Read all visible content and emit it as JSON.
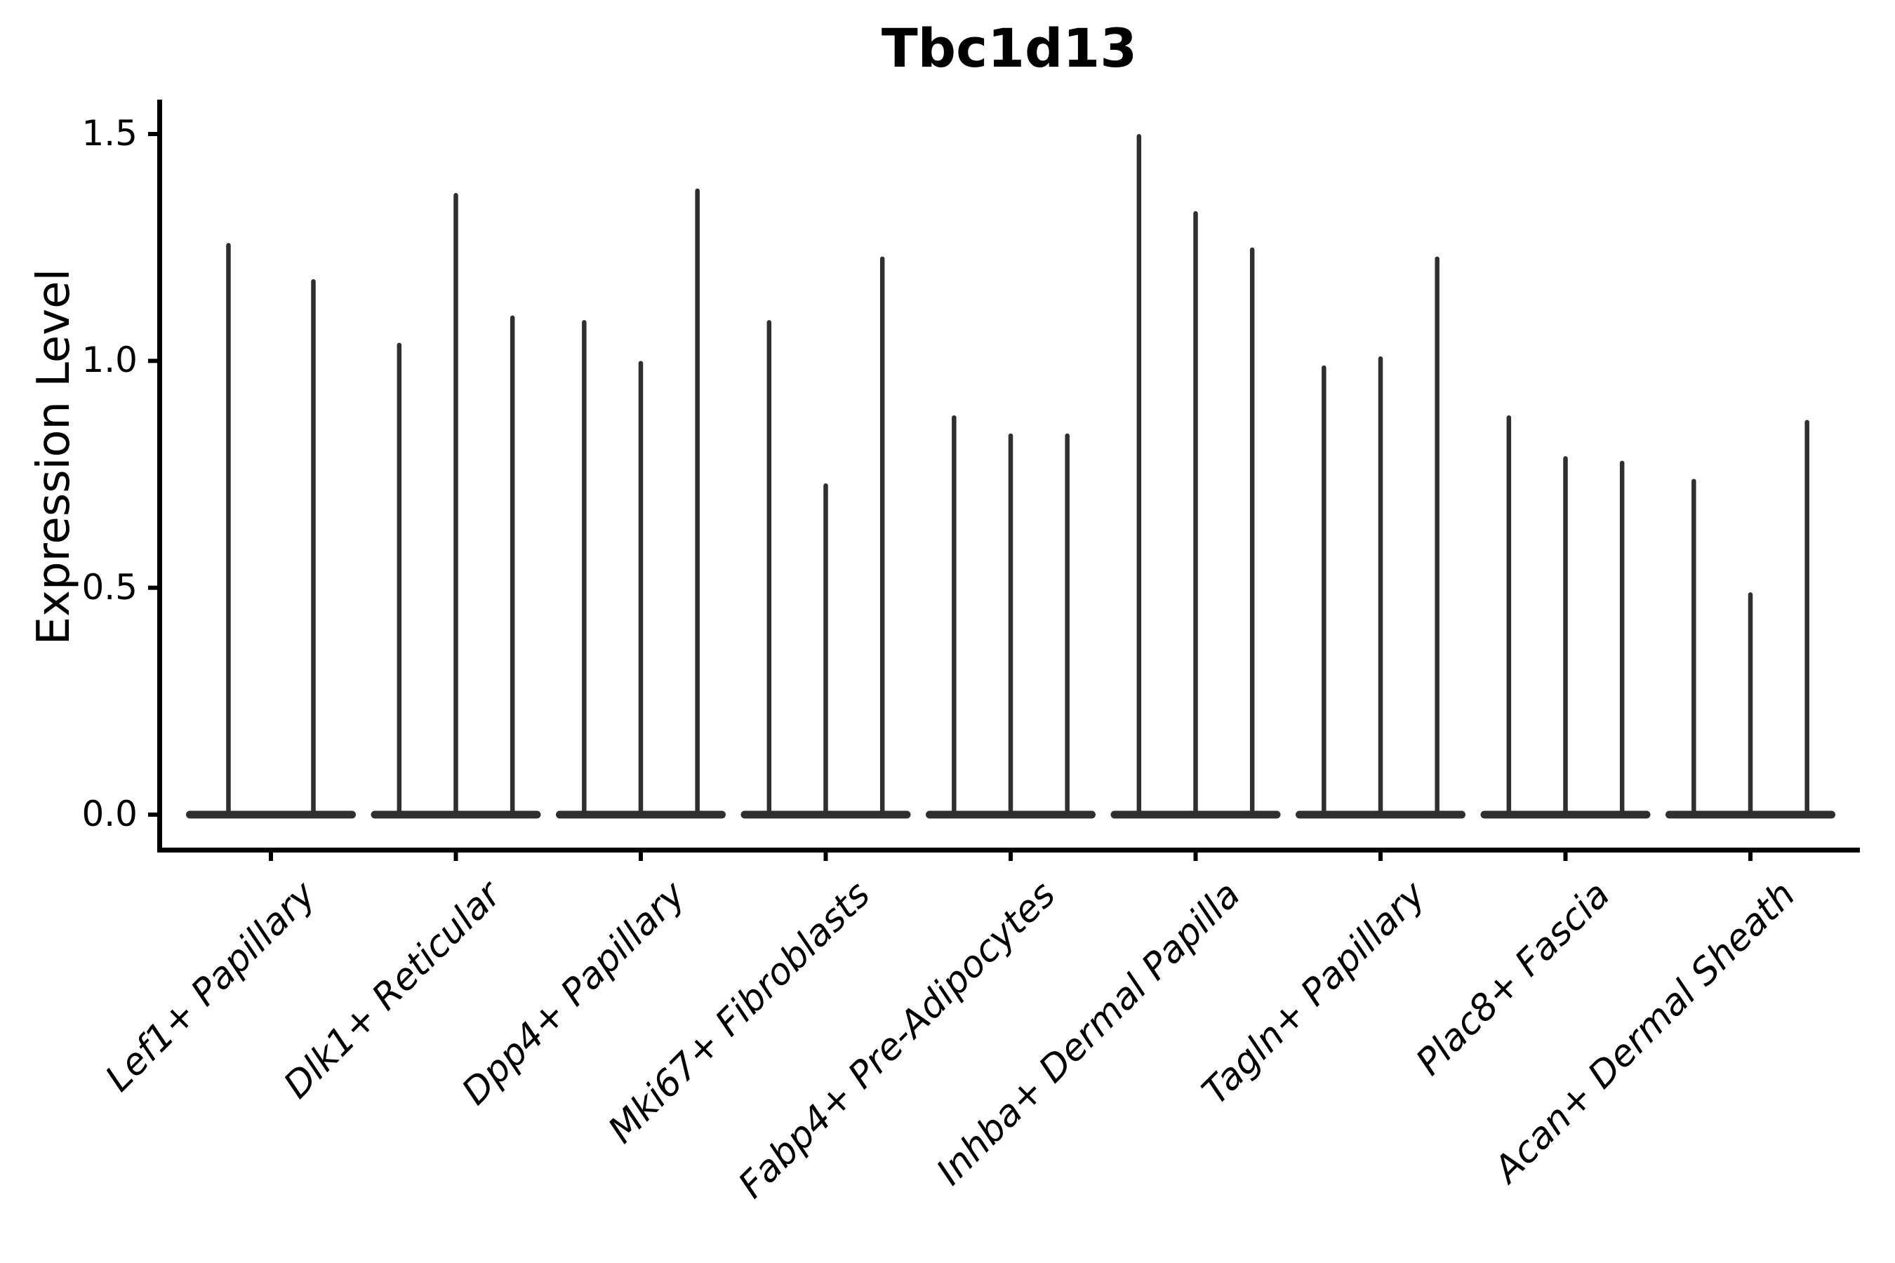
{
  "figure": {
    "background": "#ffffff"
  },
  "chart_data": {
    "type": "violin",
    "title": "Tbc1d13",
    "ylabel": "Expression Level",
    "xlabel": "",
    "grid": false,
    "legend": "none",
    "ylim": [
      -0.08,
      1.58
    ],
    "yticks": [
      0.0,
      0.5,
      1.0,
      1.5
    ],
    "ytick_labels": [
      "0.0",
      "0.5",
      "1.0",
      "1.5"
    ],
    "categories": [
      "Lef1+ Papillary",
      "Dlk1+ Reticular",
      "Dpp4+ Papillary",
      "Mki67+ Fibroblasts",
      "Fabp4+ Pre-Adipocytes",
      "Inhba+ Dermal Papilla",
      "Tagln+ Papillary",
      "Plac8+ Fascia",
      "Acan+ Dermal Sheath"
    ],
    "groups": [
      {
        "category": "Lef1+ Papillary",
        "violin_maxima": [
          1.26,
          1.18
        ]
      },
      {
        "category": "Dlk1+ Reticular",
        "violin_maxima": [
          1.04,
          1.37,
          1.1
        ]
      },
      {
        "category": "Dpp4+ Papillary",
        "violin_maxima": [
          1.09,
          1.0,
          1.38
        ]
      },
      {
        "category": "Mki67+ Fibroblasts",
        "violin_maxima": [
          1.09,
          0.73,
          1.23
        ]
      },
      {
        "category": "Fabp4+ Pre-Adipocytes",
        "violin_maxima": [
          0.88,
          0.84,
          0.84
        ]
      },
      {
        "category": "Inhba+ Dermal Papilla",
        "violin_maxima": [
          1.5,
          1.33,
          1.25
        ]
      },
      {
        "category": "Tagln+ Papillary",
        "violin_maxima": [
          0.99,
          1.01,
          1.23
        ]
      },
      {
        "category": "Plac8+ Fascia",
        "violin_maxima": [
          0.88,
          0.79,
          0.78
        ]
      },
      {
        "category": "Acan+ Dermal Sheath",
        "violin_maxima": [
          0.74,
          0.49,
          0.87
        ]
      }
    ],
    "style": {
      "violin_color": "#2f2f2f",
      "axis_color": "#000000",
      "shape_note": "needle violins: wide flat base at expression 0 with a thin spike rising to the maximum"
    }
  }
}
